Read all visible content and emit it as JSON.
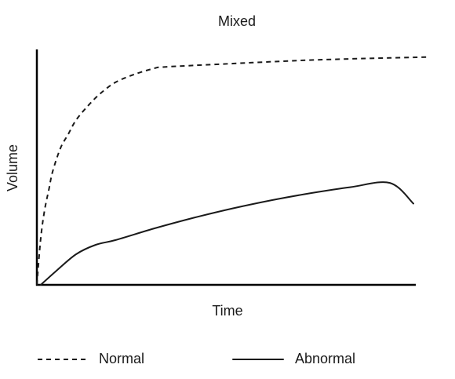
{
  "chart_data": {
    "type": "line",
    "title": "Mixed",
    "xlabel": "Time",
    "ylabel": "Volume",
    "xlim": [
      0,
      100
    ],
    "ylim": [
      0,
      100
    ],
    "legend_position": "bottom",
    "grid": false,
    "ticks": "none",
    "series": [
      {
        "name": "Normal",
        "style": "dashed",
        "color": "#1a1a1a",
        "x": [
          0,
          1,
          2,
          3,
          4,
          6,
          8,
          10,
          13,
          16,
          20,
          25,
          30,
          32,
          40,
          50,
          60,
          70,
          80,
          90,
          100
        ],
        "y": [
          0,
          20,
          32,
          40,
          48,
          58,
          64,
          70,
          76,
          81,
          86,
          89.5,
          92,
          92.5,
          93.2,
          94,
          94.8,
          95.5,
          96,
          96.4,
          96.8
        ]
      },
      {
        "name": "Abnormal",
        "style": "solid",
        "color": "#1a1a1a",
        "x": [
          1,
          5,
          10,
          15,
          20,
          30,
          40,
          50,
          60,
          70,
          80,
          90,
          96
        ],
        "y": [
          0,
          6,
          13,
          17,
          19,
          24,
          28.5,
          32.5,
          36,
          39,
          41.5,
          43.3,
          34.5
        ]
      }
    ]
  }
}
